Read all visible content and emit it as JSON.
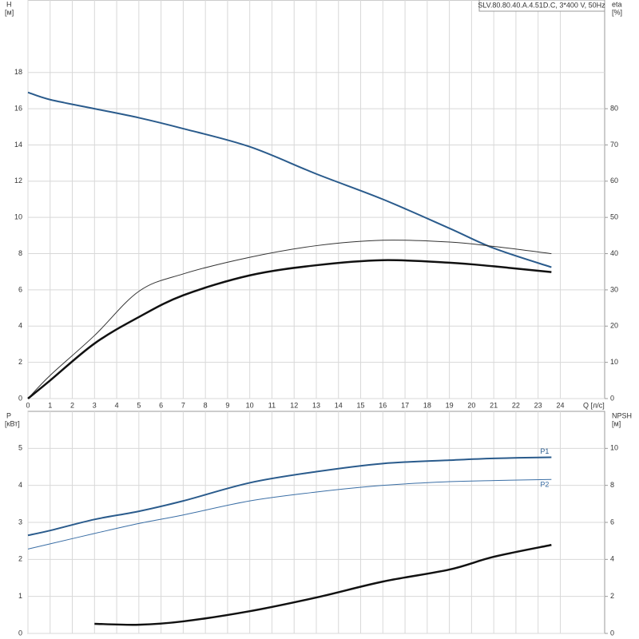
{
  "chart_data": [
    {
      "type": "line",
      "title": "SLV.80.80.40.A.4.51D.C, 3*400 V, 50Hz",
      "y_label": "H",
      "y_unit": "[м]",
      "y2_label": "eta",
      "y2_unit": "[%]",
      "x_label": "Q [л/с]",
      "x": [
        0,
        1,
        3,
        5,
        7,
        10,
        13,
        16,
        19,
        21,
        23.6
      ],
      "xlim": [
        0,
        26
      ],
      "xticks": [
        0,
        1,
        2,
        3,
        4,
        5,
        6,
        7,
        8,
        9,
        10,
        11,
        12,
        13,
        14,
        15,
        16,
        17,
        18,
        19,
        20,
        21,
        22,
        23,
        24
      ],
      "ylim": [
        0,
        22
      ],
      "yticks": [
        0,
        2,
        4,
        6,
        8,
        10,
        12,
        14,
        16,
        18
      ],
      "y2lim": [
        0,
        110
      ],
      "y2ticks": [
        0,
        10,
        20,
        30,
        40,
        50,
        60,
        70,
        80
      ],
      "grid": true,
      "series": [
        {
          "color": "#2a5b8c",
          "width": 2,
          "values": [
            16.9,
            16.5,
            16.0,
            15.5,
            14.9,
            13.9,
            12.4,
            11.0,
            9.4,
            8.3,
            7.25
          ]
        },
        {
          "color": "#333333",
          "width": 1,
          "axis": "y2",
          "values": [
            0,
            6.4,
            17.4,
            29.6,
            34.4,
            39,
            42.2,
            43.7,
            43.2,
            42,
            40
          ]
        },
        {
          "color": "#111111",
          "width": 2.5,
          "axis": "y2",
          "values": [
            0,
            5,
            15.2,
            22.5,
            28.5,
            34,
            36.8,
            38.2,
            37.5,
            36.5,
            34.9
          ]
        }
      ]
    },
    {
      "type": "line",
      "y_label": "P",
      "y_unit": "[кВт]",
      "y2_label": "NPSH",
      "y2_unit": "[м]",
      "x": [
        0,
        1,
        3,
        5,
        7,
        10,
        13,
        16,
        19,
        21,
        23.6
      ],
      "xlim": [
        0,
        26
      ],
      "xticks": [
        0,
        1,
        2,
        3,
        4,
        5,
        6,
        7,
        8,
        9,
        10,
        11,
        12,
        13,
        14,
        15,
        16,
        17,
        18,
        19,
        20,
        21,
        22,
        23,
        24
      ],
      "ylim": [
        0,
        6
      ],
      "yticks": [
        0,
        1,
        2,
        3,
        4,
        5
      ],
      "y2lim": [
        0,
        12
      ],
      "y2ticks": [
        0,
        2,
        4,
        6,
        8,
        10
      ],
      "grid": true,
      "series": [
        {
          "name": "P1",
          "color": "#2a5b8c",
          "width": 2,
          "values": [
            2.65,
            2.78,
            3.08,
            3.3,
            3.58,
            4.07,
            4.37,
            4.59,
            4.68,
            4.73,
            4.76
          ]
        },
        {
          "name": "P2",
          "color": "#3a6ea5",
          "width": 1,
          "values": [
            2.28,
            2.42,
            2.7,
            2.97,
            3.2,
            3.58,
            3.82,
            4.0,
            4.1,
            4.13,
            4.16
          ]
        },
        {
          "color": "#111111",
          "width": 2.5,
          "axis": "y2",
          "values": [
            null,
            null,
            0.52,
            0.47,
            0.65,
            1.2,
            1.94,
            2.8,
            3.45,
            4.14,
            4.78
          ]
        }
      ]
    }
  ]
}
